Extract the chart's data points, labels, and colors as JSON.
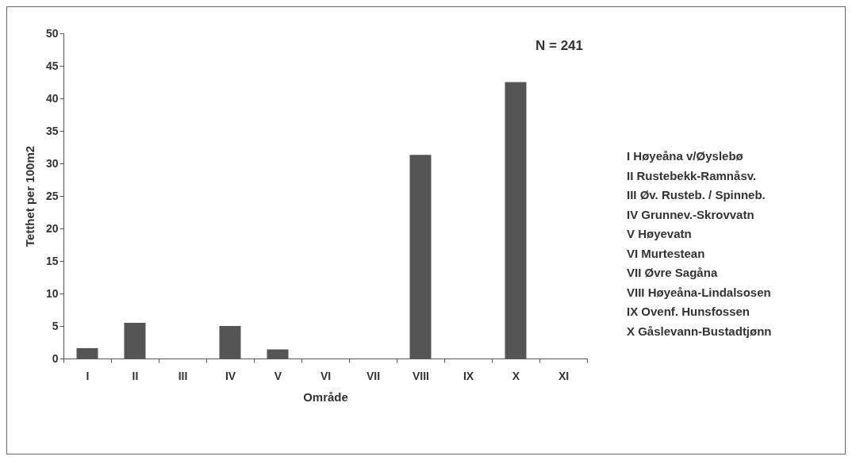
{
  "chart_data": {
    "type": "bar",
    "xlabel": "Område",
    "ylabel": "Tetthet per 100m2",
    "categories": [
      "I",
      "II",
      "III",
      "IV",
      "V",
      "VI",
      "VII",
      "VIII",
      "IX",
      "X",
      "XI"
    ],
    "values": [
      1.6,
      5.5,
      0,
      5.0,
      1.4,
      0,
      0,
      31.3,
      0,
      42.5,
      0
    ],
    "color": "#555555",
    "ylim": [
      0,
      50
    ],
    "yticks": [
      0,
      5,
      10,
      15,
      20,
      25,
      30,
      35,
      40,
      45,
      50
    ],
    "grid": false,
    "annotations": [
      "N = 241",
      "I Høyeåna v/Øyslebø",
      "II Rustebekk-Ramnåsv.",
      "III Øv. Rusteb. / Spinneb.",
      "IV Grunnev.-Skrovvatn",
      "V Høyevatn",
      "VI Murtestean",
      "VII Øvre Sagåna",
      "VIII Høyeåna-Lindalsosen",
      "IX Ovenf. Hunsfossen",
      "X Gåslevann-Bustadtjønn"
    ]
  }
}
